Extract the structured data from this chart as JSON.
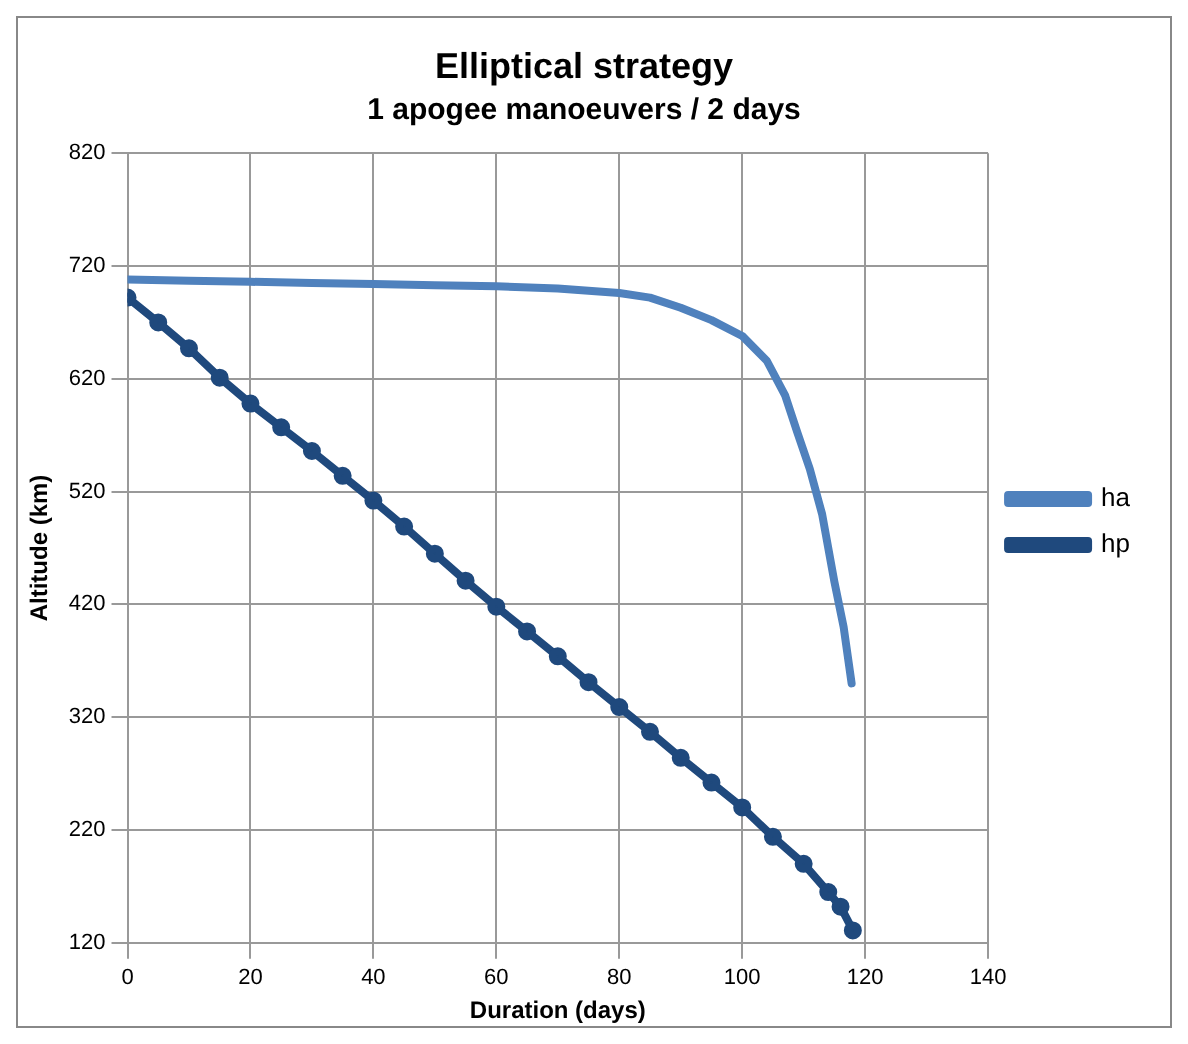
{
  "chart_data": {
    "type": "line",
    "title": "Elliptical strategy",
    "subtitle": "1 apogee manoeuvers / 2 days",
    "xlabel": "Duration (days)",
    "ylabel": "Altitude (km)",
    "xlim": [
      0,
      140
    ],
    "xticks": [
      0,
      20,
      40,
      60,
      80,
      100,
      120,
      140
    ],
    "ylim": [
      120,
      820
    ],
    "yticks": [
      120,
      220,
      320,
      420,
      520,
      620,
      720,
      820
    ],
    "grid": true,
    "legend": "right",
    "series": [
      {
        "name": "ha",
        "color": "#4f81bd",
        "marker": "none",
        "x": [
          0,
          10,
          20,
          30,
          40,
          50,
          60,
          70,
          80,
          85,
          90,
          95,
          100,
          104,
          107,
          109,
          111,
          113,
          115,
          116.5,
          117.8
        ],
        "values": [
          708,
          707,
          706,
          705,
          704,
          703,
          702,
          700,
          696,
          692,
          683,
          672,
          658,
          636,
          605,
          572,
          540,
          500,
          440,
          400,
          350
        ]
      },
      {
        "name": "hp",
        "color": "#1f497d",
        "marker": "circle",
        "x": [
          0,
          5,
          10,
          15,
          20,
          25,
          30,
          35,
          40,
          45,
          50,
          55,
          60,
          65,
          70,
          75,
          80,
          85,
          90,
          95,
          100,
          105,
          110,
          114,
          116,
          118
        ],
        "values": [
          692,
          670,
          647,
          621,
          598,
          577,
          556,
          534,
          512,
          489,
          465,
          441,
          418,
          396,
          374,
          351,
          329,
          307,
          284,
          262,
          240,
          214,
          190,
          165,
          152,
          131
        ]
      }
    ]
  }
}
